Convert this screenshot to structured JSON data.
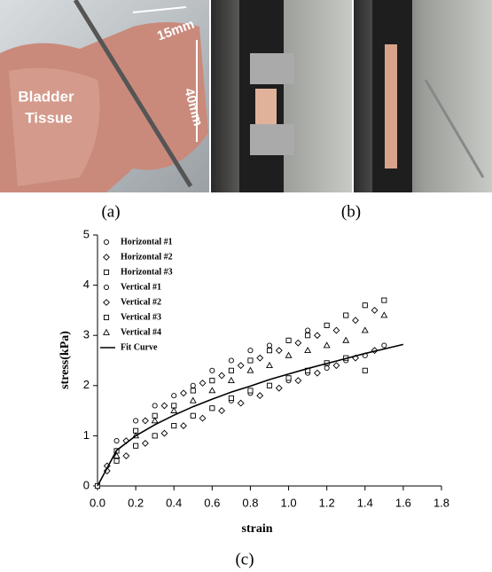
{
  "panels": [
    {
      "label": "(a)",
      "annotations": [
        "15mm",
        "40mm",
        "Bladder",
        "Tissue"
      ]
    },
    {
      "label": "(b)"
    },
    {
      "label": "(c)"
    }
  ],
  "chart_data": {
    "type": "scatter",
    "x_label": "strain",
    "y_label": "stress(kPa)",
    "xlim": [
      0,
      1.8
    ],
    "ylim": [
      0,
      5
    ],
    "xticks": [
      {
        "value": 0,
        "label": "0.0"
      },
      {
        "value": 0.2,
        "label": "0.2"
      },
      {
        "value": 0.4,
        "label": "0.4"
      },
      {
        "value": 0.6,
        "label": "0.6"
      },
      {
        "value": 0.8,
        "label": "0.8"
      },
      {
        "value": 1.0,
        "label": "1.0"
      },
      {
        "value": 1.2,
        "label": "1.2"
      },
      {
        "value": 1.4,
        "label": "1.4"
      },
      {
        "value": 1.6,
        "label": "1.6"
      },
      {
        "value": 1.8,
        "label": "1.8"
      }
    ],
    "yticks": [
      0,
      1,
      2,
      3,
      4,
      5
    ],
    "legend": "upper left",
    "series": [
      {
        "name": "Horizontal #1",
        "marker": "circle",
        "color": "#000000",
        "x": [
          0,
          0.1,
          0.2,
          0.3,
          0.4,
          0.5,
          0.6,
          0.7,
          0.8,
          0.9,
          1.0,
          1.1,
          1.2,
          1.3,
          1.4
        ],
        "values": [
          0,
          0.9,
          1.3,
          1.6,
          1.8,
          2.0,
          2.3,
          2.5,
          2.7,
          2.8,
          2.9,
          3.1,
          3.2,
          3.4,
          3.6
        ]
      },
      {
        "name": "Horizontal #2",
        "marker": "diamond",
        "color": "#000000",
        "x": [
          0.05,
          0.15,
          0.25,
          0.35,
          0.45,
          0.55,
          0.65,
          0.75,
          0.85,
          0.95,
          1.05,
          1.15,
          1.25,
          1.35,
          1.45
        ],
        "values": [
          0.3,
          0.6,
          0.85,
          1.05,
          1.2,
          1.35,
          1.5,
          1.65,
          1.8,
          1.95,
          2.1,
          2.25,
          2.4,
          2.55,
          2.7
        ]
      },
      {
        "name": "Horizontal #3",
        "marker": "square",
        "color": "#000000",
        "x": [
          0.1,
          0.2,
          0.3,
          0.4,
          0.5,
          0.6,
          0.7,
          0.8,
          0.9,
          1.0,
          1.1,
          1.2,
          1.3,
          1.4,
          1.5
        ],
        "values": [
          0.7,
          1.1,
          1.4,
          1.6,
          1.9,
          2.1,
          2.3,
          2.5,
          2.7,
          2.9,
          3.0,
          3.2,
          3.4,
          3.6,
          3.7
        ]
      },
      {
        "name": "Vertical #1",
        "marker": "circle",
        "color": "#000000",
        "x": [
          0.1,
          0.2,
          0.3,
          0.4,
          0.5,
          0.6,
          0.7,
          0.8,
          0.9,
          1.0,
          1.1,
          1.2,
          1.3,
          1.4,
          1.5
        ],
        "values": [
          0.5,
          0.8,
          1.0,
          1.2,
          1.4,
          1.55,
          1.7,
          1.85,
          2.0,
          2.1,
          2.25,
          2.35,
          2.5,
          2.6,
          2.8
        ]
      },
      {
        "name": "Vertical #2",
        "marker": "diamond",
        "color": "#000000",
        "x": [
          0.05,
          0.15,
          0.25,
          0.35,
          0.45,
          0.55,
          0.65,
          0.75,
          0.85,
          0.95,
          1.05,
          1.15,
          1.25,
          1.35,
          1.45
        ],
        "values": [
          0.4,
          0.9,
          1.3,
          1.6,
          1.85,
          2.05,
          2.2,
          2.4,
          2.55,
          2.7,
          2.85,
          3.0,
          3.1,
          3.3,
          3.5
        ]
      },
      {
        "name": "Vertical #3",
        "marker": "square",
        "color": "#000000",
        "x": [
          0,
          0.1,
          0.2,
          0.3,
          0.4,
          0.5,
          0.6,
          0.7,
          0.8,
          0.9,
          1.0,
          1.1,
          1.2,
          1.3,
          1.4
        ],
        "values": [
          0,
          0.5,
          0.8,
          1.0,
          1.2,
          1.4,
          1.55,
          1.75,
          1.9,
          2.0,
          2.15,
          2.3,
          2.45,
          2.55,
          2.3
        ]
      },
      {
        "name": "Vertical #4",
        "marker": "triangle",
        "color": "#000000",
        "x": [
          0.1,
          0.2,
          0.3,
          0.4,
          0.5,
          0.6,
          0.7,
          0.8,
          0.9,
          1.0,
          1.1,
          1.2,
          1.3,
          1.4,
          1.5
        ],
        "values": [
          0.6,
          1.0,
          1.3,
          1.5,
          1.7,
          1.9,
          2.1,
          2.3,
          2.4,
          2.6,
          2.7,
          2.8,
          2.9,
          3.1,
          3.4
        ]
      },
      {
        "name": "Fit Curve",
        "marker": "line",
        "color": "#000000",
        "x": [
          0,
          0.1,
          0.2,
          0.3,
          0.4,
          0.5,
          0.6,
          0.7,
          0.8,
          0.9,
          1.0,
          1.1,
          1.2,
          1.3,
          1.4,
          1.5,
          1.6
        ],
        "values": [
          0,
          0.71,
          1.0,
          1.22,
          1.41,
          1.58,
          1.73,
          1.87,
          1.99,
          2.12,
          2.23,
          2.34,
          2.44,
          2.54,
          2.64,
          2.73,
          2.82
        ]
      }
    ]
  }
}
